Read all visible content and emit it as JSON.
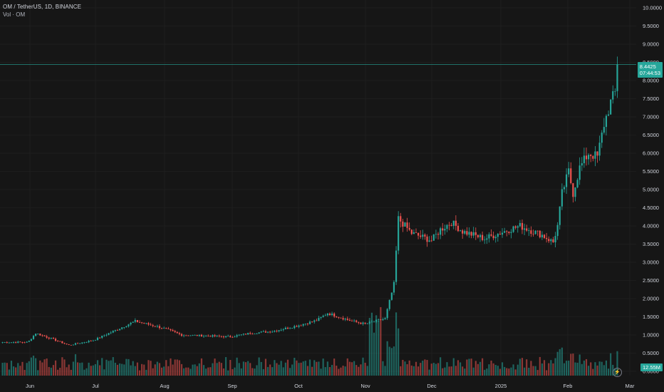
{
  "header": {
    "symbol_line": "OM / TetherUS, 1D, BINANCE",
    "volume_line": "Vol · OM"
  },
  "price_tag": {
    "price": "8.4425",
    "countdown": "07:44:53"
  },
  "volume_tag": "12.55M",
  "colors": {
    "up": "#26a69a",
    "down": "#ef5350",
    "background": "#161616",
    "grid": "#242424"
  },
  "chart_data": {
    "type": "candlestick",
    "y_axis": {
      "min": 0,
      "max": 10,
      "ticks": [
        "10.0000",
        "9.5000",
        "9.0000",
        "8.5000",
        "8.0000",
        "7.5000",
        "7.0000",
        "6.5000",
        "6.0000",
        "5.5000",
        "5.0000",
        "4.5000",
        "4.0000",
        "3.5000",
        "3.0000",
        "2.5000",
        "2.0000",
        "1.5000",
        "1.0000",
        "0.5000",
        "0.0000"
      ]
    },
    "x_axis": {
      "ticks": [
        "Jun",
        "Jul",
        "Aug",
        "Sep",
        "Oct",
        "Nov",
        "Dec",
        "2025",
        "Feb",
        "Mar"
      ]
    },
    "last_price": 8.4425,
    "grid": true,
    "approx_close_path": [
      {
        "date": "May 21",
        "close": 0.8
      },
      {
        "date": "Jun 01",
        "close": 0.76
      },
      {
        "date": "Jun 05",
        "close": 1.05
      },
      {
        "date": "Jun 12",
        "close": 0.9
      },
      {
        "date": "Jun 20",
        "close": 0.72
      },
      {
        "date": "Jul 01",
        "close": 0.85
      },
      {
        "date": "Jul 10",
        "close": 1.1
      },
      {
        "date": "Jul 20",
        "close": 1.38
      },
      {
        "date": "Aug 01",
        "close": 1.2
      },
      {
        "date": "Aug 10",
        "close": 1.0
      },
      {
        "date": "Aug 20",
        "close": 0.98
      },
      {
        "date": "Sep 01",
        "close": 0.95
      },
      {
        "date": "Sep 10",
        "close": 1.05
      },
      {
        "date": "Sep 20",
        "close": 1.1
      },
      {
        "date": "Oct 01",
        "close": 1.25
      },
      {
        "date": "Oct 10",
        "close": 1.4
      },
      {
        "date": "Oct 15",
        "close": 1.6
      },
      {
        "date": "Oct 25",
        "close": 1.4
      },
      {
        "date": "Nov 01",
        "close": 1.3
      },
      {
        "date": "Nov 10",
        "close": 1.45
      },
      {
        "date": "Nov 14",
        "close": 2.4
      },
      {
        "date": "Nov 16",
        "close": 4.2
      },
      {
        "date": "Nov 22",
        "close": 3.8
      },
      {
        "date": "Dec 01",
        "close": 3.6
      },
      {
        "date": "Dec 05",
        "close": 3.9
      },
      {
        "date": "Dec 10",
        "close": 4.1
      },
      {
        "date": "Dec 15",
        "close": 3.85
      },
      {
        "date": "Dec 25",
        "close": 3.65
      },
      {
        "date": "Jan 05",
        "close": 3.9
      },
      {
        "date": "Jan 10",
        "close": 4.0
      },
      {
        "date": "Jan 20",
        "close": 3.75
      },
      {
        "date": "Jan 25",
        "close": 3.55
      },
      {
        "date": "Jan 27",
        "close": 4.0
      },
      {
        "date": "Jan 29",
        "close": 4.9
      },
      {
        "date": "Feb 01",
        "close": 5.5
      },
      {
        "date": "Feb 03",
        "close": 4.9
      },
      {
        "date": "Feb 06",
        "close": 5.6
      },
      {
        "date": "Feb 10",
        "close": 6.0
      },
      {
        "date": "Feb 14",
        "close": 5.9
      },
      {
        "date": "Feb 17",
        "close": 6.8
      },
      {
        "date": "Feb 20",
        "close": 7.4
      },
      {
        "date": "Feb 23",
        "close": 7.8
      },
      {
        "date": "Feb 25",
        "close": 8.44
      }
    ]
  }
}
